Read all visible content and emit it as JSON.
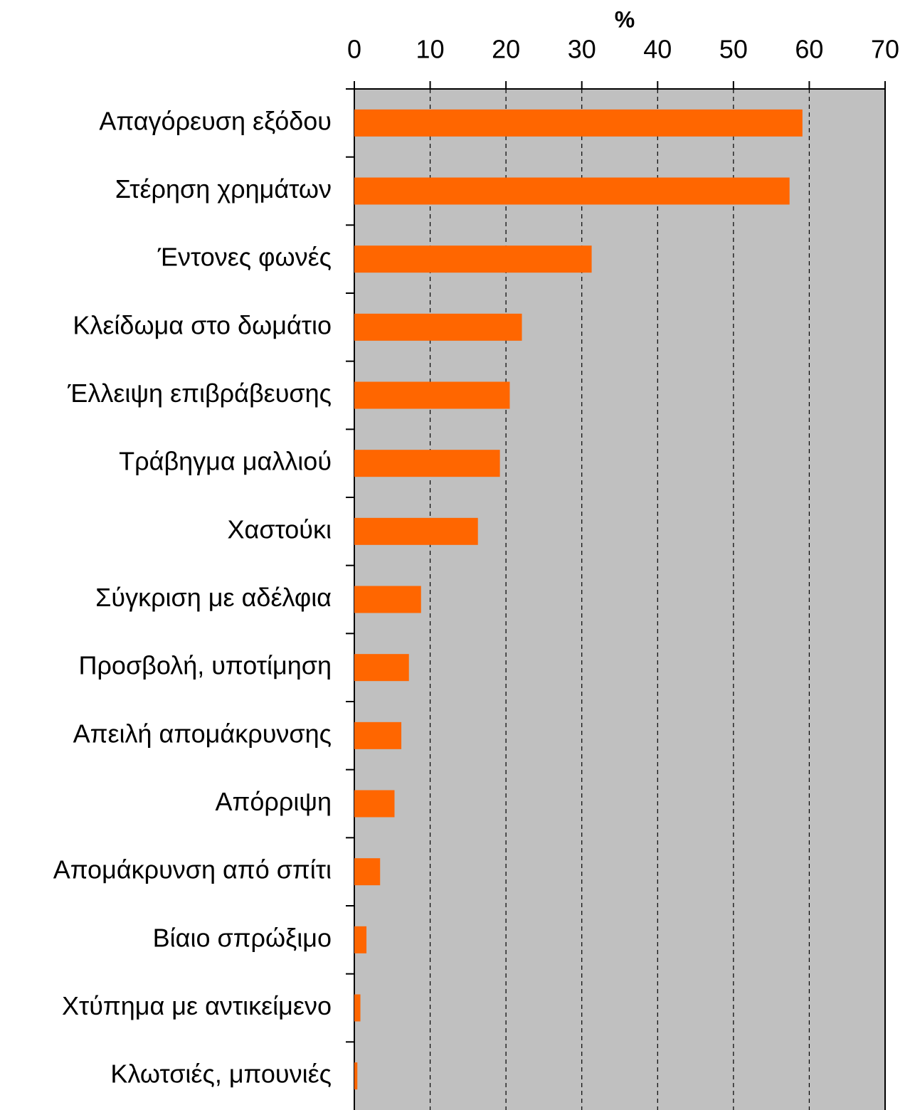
{
  "chart_data": {
    "type": "barh",
    "x_label": "%",
    "categories": [
      "Απαγόρευση εξόδου",
      "Στέρηση χρημάτων",
      "Έντονες φωνές",
      "Κλείδωμα στο δωμάτιο",
      "Έλλειψη επιβράβευσης",
      "Τράβηγμα μαλλιού",
      "Χαστούκι",
      "Σύγκριση με αδέλφια",
      "Προσβολή, υποτίμηση",
      "Απειλή απομάκρυνσης",
      "Απόρριψη",
      "Απομάκρυνση από σπίτι",
      "Βίαιο σπρώξιμο",
      "Χτύπημα με αντικείμενο",
      "Κλωτσιές, μπουνιές"
    ],
    "values": [
      59.1,
      57.4,
      31.3,
      22.1,
      20.5,
      19.2,
      16.3,
      8.8,
      7.2,
      6.2,
      5.3,
      3.4,
      1.6,
      0.8,
      0.4
    ],
    "color": "#ff6600",
    "plot_background": "#c0c0c0",
    "xlim": [
      0,
      70
    ],
    "xticks": [
      0,
      10,
      20,
      30,
      40,
      50,
      60,
      70
    ],
    "grid": true
  }
}
